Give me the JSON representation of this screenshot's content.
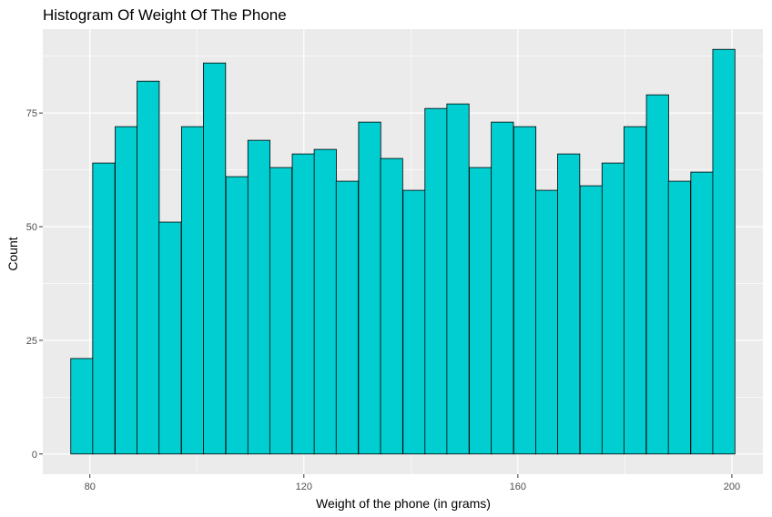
{
  "chart_data": {
    "type": "bar",
    "title": "Histogram Of Weight Of The Phone",
    "xlabel": "Weight of the phone (in grams)",
    "ylabel": "Count",
    "bin_width": 4.14,
    "bins": [
      {
        "x": 78.5,
        "count": 21
      },
      {
        "x": 82.6,
        "count": 64
      },
      {
        "x": 86.8,
        "count": 72
      },
      {
        "x": 90.9,
        "count": 82
      },
      {
        "x": 95.0,
        "count": 51
      },
      {
        "x": 99.2,
        "count": 72
      },
      {
        "x": 103.3,
        "count": 86
      },
      {
        "x": 107.5,
        "count": 61
      },
      {
        "x": 111.6,
        "count": 69
      },
      {
        "x": 115.7,
        "count": 63
      },
      {
        "x": 119.9,
        "count": 66
      },
      {
        "x": 124.0,
        "count": 67
      },
      {
        "x": 128.1,
        "count": 60
      },
      {
        "x": 132.3,
        "count": 73
      },
      {
        "x": 136.4,
        "count": 65
      },
      {
        "x": 140.6,
        "count": 58
      },
      {
        "x": 144.7,
        "count": 76
      },
      {
        "x": 148.8,
        "count": 77
      },
      {
        "x": 153.0,
        "count": 63
      },
      {
        "x": 157.1,
        "count": 73
      },
      {
        "x": 161.3,
        "count": 72
      },
      {
        "x": 165.4,
        "count": 58
      },
      {
        "x": 169.5,
        "count": 66
      },
      {
        "x": 173.7,
        "count": 59
      },
      {
        "x": 177.8,
        "count": 64
      },
      {
        "x": 181.9,
        "count": 72
      },
      {
        "x": 186.1,
        "count": 79
      },
      {
        "x": 190.2,
        "count": 60
      },
      {
        "x": 194.4,
        "count": 62
      },
      {
        "x": 198.5,
        "count": 89
      }
    ],
    "xlim": [
      71.2,
      205.8
    ],
    "ylim": [
      -4.45,
      93.45
    ],
    "x_ticks": [
      80,
      120,
      160,
      200
    ],
    "y_ticks": [
      0,
      25,
      50,
      75
    ],
    "x_tick_labels": [
      "80",
      "120",
      "160",
      "200"
    ],
    "y_tick_labels": [
      "0",
      "25",
      "50",
      "75"
    ],
    "grid": true,
    "fill_color": "#00CED1",
    "edge_color": "#000000",
    "panel_background": "#EBEBEB",
    "grid_color": "#FFFFFF"
  }
}
